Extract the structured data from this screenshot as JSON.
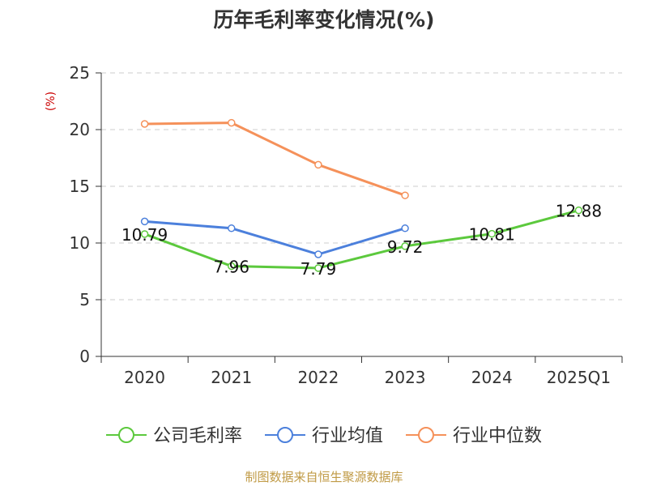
{
  "chart_data": {
    "type": "line",
    "title": "历年毛利率变化情况(%)",
    "y_unit": "(%)",
    "categories": [
      "2020",
      "2021",
      "2022",
      "2023",
      "2024",
      "2025Q1"
    ],
    "ylim": [
      0,
      25
    ],
    "y_ticks": [
      0,
      5,
      10,
      15,
      20,
      25
    ],
    "grid": true,
    "legend_position": "bottom",
    "series": [
      {
        "name": "公司毛利率",
        "color": "#5cc93d",
        "values": [
          10.79,
          7.96,
          7.79,
          9.72,
          10.81,
          12.88
        ],
        "data_labels": [
          "10.79",
          "7.96",
          "7.79",
          "9.72",
          "10.81",
          "12.88"
        ]
      },
      {
        "name": "行业均值",
        "color": "#4c80dc",
        "values": [
          11.9,
          11.3,
          9.0,
          11.3,
          null,
          null
        ]
      },
      {
        "name": "行业中位数",
        "color": "#f5915a",
        "values": [
          20.5,
          20.6,
          16.9,
          14.2,
          null,
          null
        ]
      }
    ],
    "source": "制图数据来自恒生聚源数据库"
  }
}
